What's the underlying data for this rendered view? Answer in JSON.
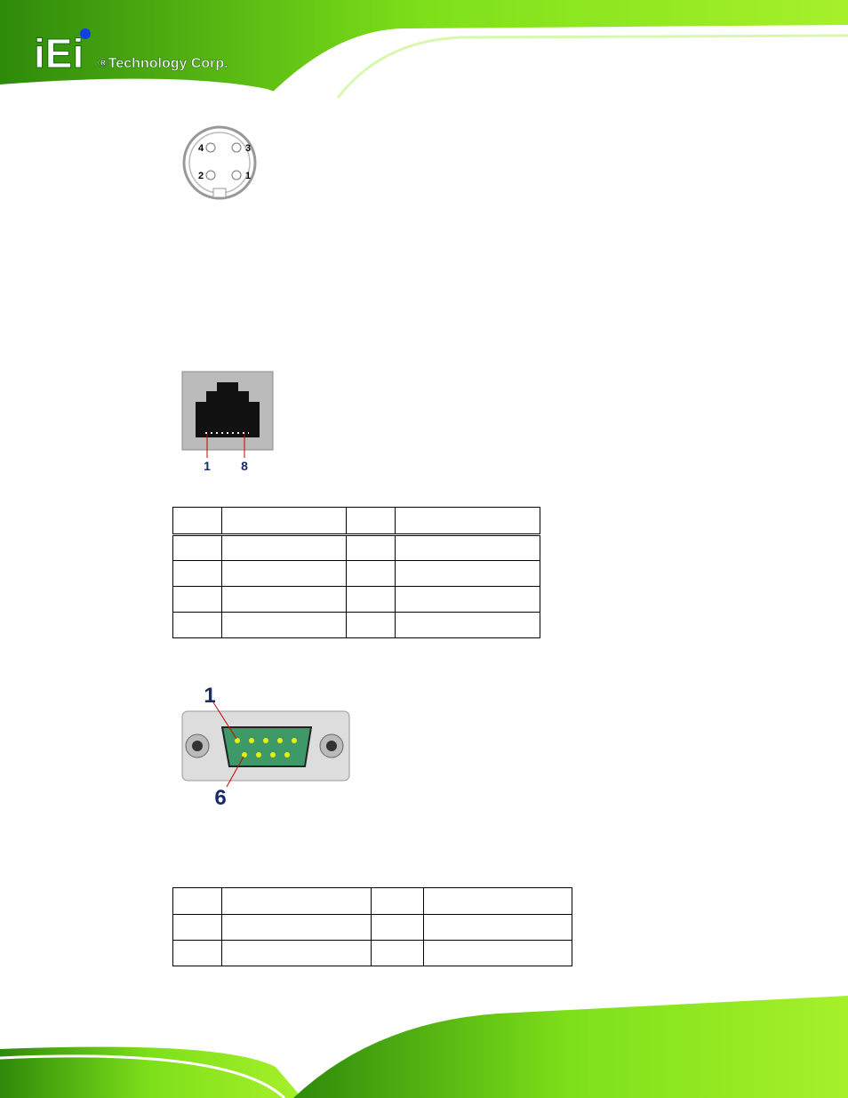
{
  "header": {
    "logo": "iEi",
    "company": "®Technology Corp."
  },
  "ps2_connector": {
    "pins": [
      4,
      3,
      2,
      1
    ]
  },
  "rj45_connector": {
    "pins": [
      1,
      8
    ]
  },
  "db9_connector": {
    "pins": [
      1,
      6
    ]
  }
}
